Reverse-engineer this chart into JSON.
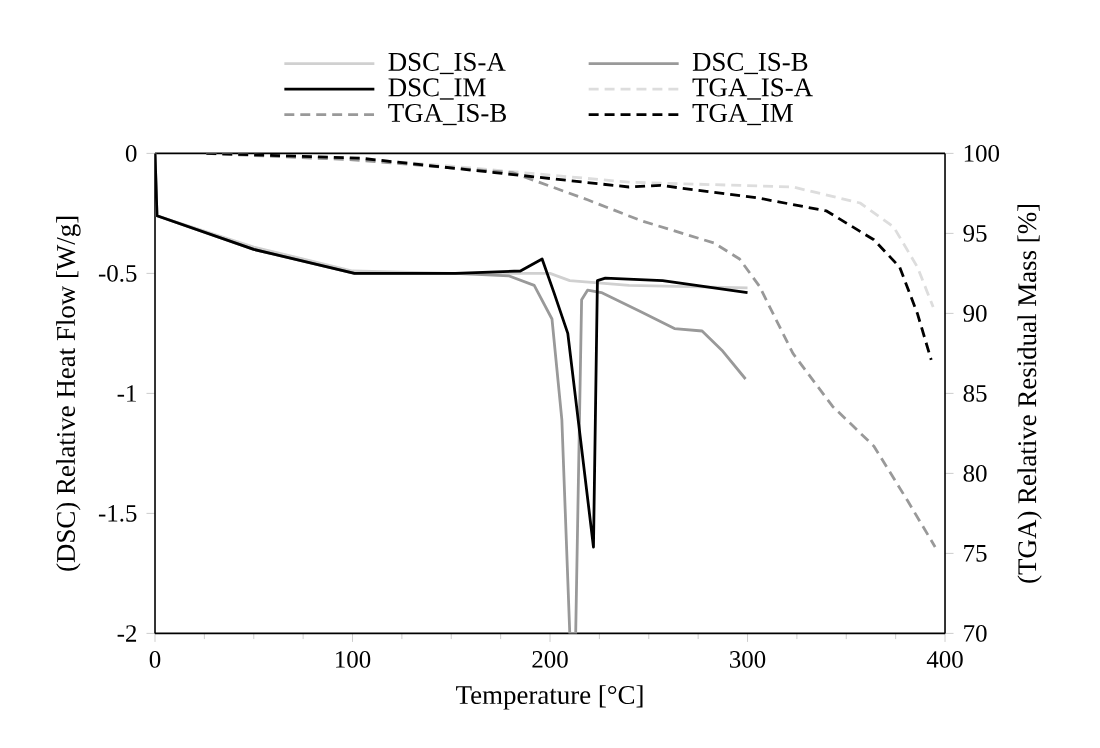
{
  "chart_data": {
    "type": "line",
    "xlabel": "Temperature [°C]",
    "ylabel": "(DSC) Relative Heat Flow [W/g]",
    "y2label": "(TGA) Relative Residual Mass [%]",
    "xlim": [
      0,
      400
    ],
    "xticks": [
      0,
      100,
      200,
      300,
      400
    ],
    "ylim": [
      -2,
      0
    ],
    "yticks": [
      -2,
      -1.5,
      -1,
      -0.5,
      0
    ],
    "y2lim": [
      70,
      100
    ],
    "y2ticks": [
      70,
      75,
      80,
      85,
      90,
      95,
      100
    ],
    "legend": "top",
    "grid": false,
    "series": [
      {
        "name": "DSC_IS-A",
        "color": "#d0d0d0",
        "line_style": "solid",
        "axis": "y",
        "x": [
          0,
          1,
          50,
          100,
          150,
          190,
          200,
          210,
          240,
          300
        ],
        "values": [
          0,
          -0.26,
          -0.39,
          -0.49,
          -0.5,
          -0.5,
          -0.5,
          -0.53,
          -0.55,
          -0.56
        ]
      },
      {
        "name": "DSC_IS-B",
        "color": "#999999",
        "line_style": "solid",
        "axis": "y",
        "x": [
          0,
          1,
          50,
          101,
          152,
          179,
          192,
          201,
          206,
          210,
          213,
          216,
          219,
          226,
          246,
          263,
          277,
          287,
          299
        ],
        "values": [
          0,
          -0.26,
          -0.4,
          -0.5,
          -0.5,
          -0.51,
          -0.55,
          -0.69,
          -1.11,
          -2.0,
          -2.0,
          -0.61,
          -0.57,
          -0.58,
          -0.66,
          -0.73,
          -0.74,
          -0.82,
          -0.94
        ]
      },
      {
        "name": "DSC_IM",
        "color": "#000000",
        "line_style": "solid",
        "axis": "y",
        "x": [
          0,
          1,
          50,
          101,
          152,
          185,
          196,
          202,
          209,
          222,
          224,
          228,
          257,
          300
        ],
        "values": [
          0,
          -0.26,
          -0.4,
          -0.5,
          -0.5,
          -0.49,
          -0.44,
          -0.58,
          -0.75,
          -1.64,
          -0.53,
          -0.52,
          -0.53,
          -0.58
        ]
      },
      {
        "name": "TGA_IS-A",
        "color": "#dddddd",
        "line_style": "dashed",
        "axis": "y2",
        "x": [
          26,
          100,
          150,
          240,
          323,
          357,
          374,
          386,
          394
        ],
        "values": [
          100,
          99.7,
          99.2,
          98.2,
          97.9,
          96.9,
          95.4,
          92.9,
          90.4
        ]
      },
      {
        "name": "TGA_IS-B",
        "color": "#999999",
        "line_style": "dashed",
        "axis": "y2",
        "x": [
          26,
          100,
          150,
          181,
          219,
          246,
          283,
          296,
          306,
          323,
          343,
          364,
          381,
          395
        ],
        "values": [
          100,
          99.6,
          99.1,
          98.8,
          97.1,
          95.8,
          94.4,
          93.4,
          91.7,
          87.5,
          84.2,
          81.7,
          78.3,
          75.4
        ]
      },
      {
        "name": "TGA_IM",
        "color": "#000000",
        "line_style": "dashed",
        "axis": "y2",
        "x": [
          26,
          104,
          172,
          240,
          256,
          306,
          340,
          364,
          377,
          386,
          393
        ],
        "values": [
          100,
          99.7,
          98.8,
          97.9,
          98,
          97.2,
          96.4,
          94.6,
          92.9,
          90,
          87.1
        ]
      }
    ]
  }
}
